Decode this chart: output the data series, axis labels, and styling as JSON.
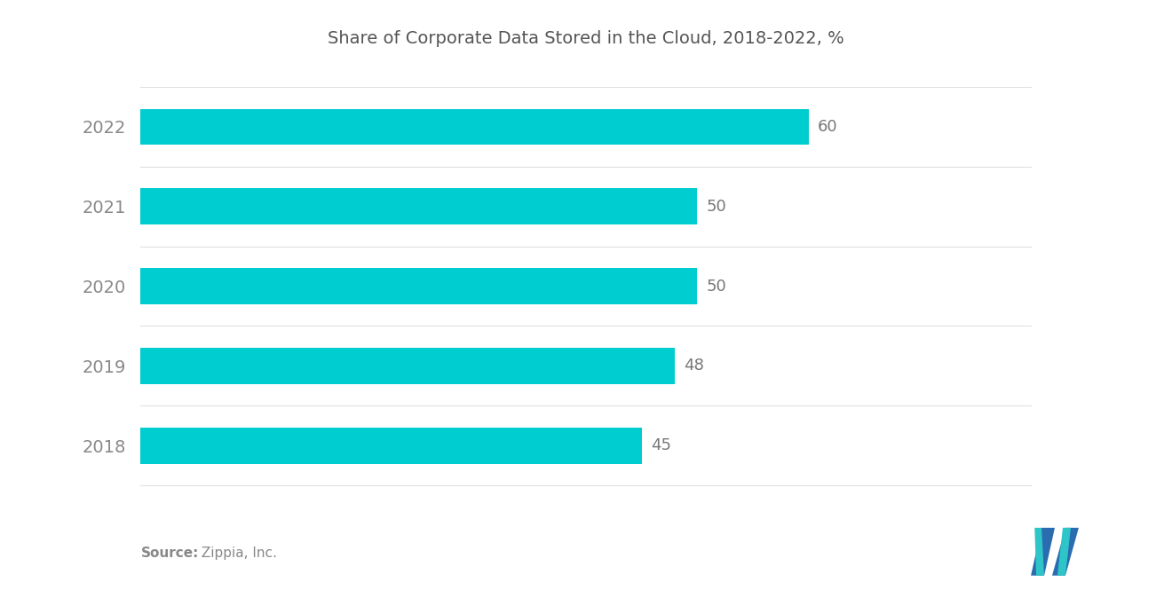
{
  "title": "Share of Corporate Data Stored in the Cloud, 2018-2022, %",
  "years": [
    "2018",
    "2019",
    "2020",
    "2021",
    "2022"
  ],
  "values": [
    45,
    48,
    50,
    50,
    60
  ],
  "bar_color": "#00CDD0",
  "bar_height": 0.45,
  "value_label_color": "#777777",
  "year_label_color": "#888888",
  "title_color": "#555555",
  "background_color": "#ffffff",
  "source_label": "Source:",
  "source_rest": " Zippia, Inc.",
  "xlim": [
    0,
    80
  ],
  "title_fontsize": 14,
  "label_fontsize": 14,
  "value_fontsize": 13,
  "source_fontsize": 11,
  "logo_left_color": "#2B6CB0",
  "logo_right_color": "#2EC5C8"
}
